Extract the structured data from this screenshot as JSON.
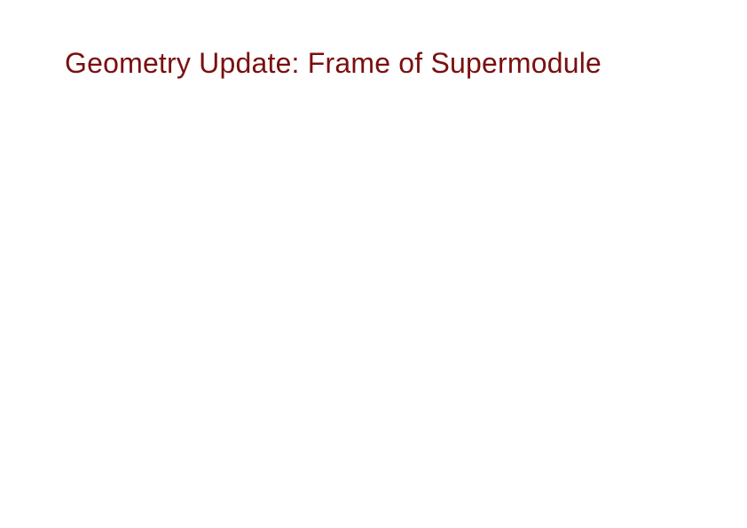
{
  "slide": {
    "title": "Geometry Update:  Frame of Supermodule",
    "title_color": "#7a0f0f",
    "title_fontsize": 32,
    "background_color": "#ffffff"
  }
}
